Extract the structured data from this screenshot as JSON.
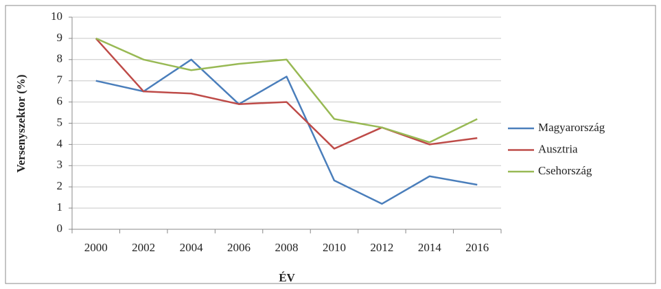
{
  "chart_data": {
    "type": "line",
    "x_label": "ÉV",
    "y_label": "Versenyszektor (%)",
    "categories": [
      "2000",
      "2002",
      "2004",
      "2006",
      "2008",
      "2010",
      "2012",
      "2014",
      "2016"
    ],
    "series": [
      {
        "name": "Magyarország",
        "color": "#4a7ebb",
        "values": [
          7,
          6.5,
          8,
          5.9,
          7.2,
          2.3,
          1.2,
          2.5,
          2.1
        ]
      },
      {
        "name": "Ausztria",
        "color": "#be4b48",
        "values": [
          9,
          6.5,
          6.4,
          5.9,
          6,
          3.8,
          4.8,
          4,
          4.3
        ]
      },
      {
        "name": "Csehország",
        "color": "#98b954",
        "values": [
          9,
          8,
          7.5,
          7.8,
          8,
          5.2,
          4.8,
          4.1,
          5.2
        ]
      }
    ],
    "ylim": [
      0,
      10
    ],
    "yticks": [
      0,
      1,
      2,
      3,
      4,
      5,
      6,
      7,
      8,
      9,
      10
    ],
    "grid": true,
    "legend": "right"
  }
}
